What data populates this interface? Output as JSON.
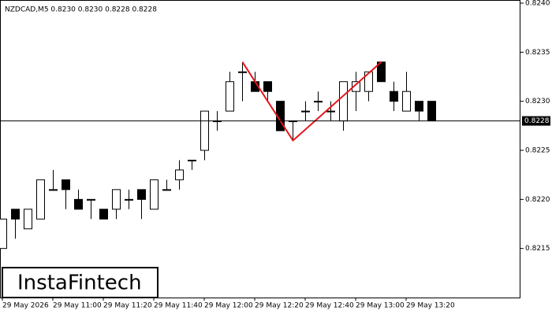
{
  "chart_data": {
    "type": "candlestick",
    "title": "NZDCAD,M5  0.8230 0.8230 0.8228 0.8228",
    "brand": "InstaFintech",
    "x": [
      "29 May 10:40",
      "29 May 10:45",
      "29 May 10:50",
      "29 May 10:55",
      "29 May 11:00",
      "29 May 11:05",
      "29 May 11:10",
      "29 May 11:15",
      "29 May 11:20",
      "29 May 11:25",
      "29 May 11:30",
      "29 May 11:35",
      "29 May 11:40",
      "29 May 11:45",
      "29 May 11:50",
      "29 May 11:55",
      "29 May 12:00",
      "29 May 12:05",
      "29 May 12:10",
      "29 May 12:15",
      "29 May 12:20",
      "29 May 12:25",
      "29 May 12:30",
      "29 May 12:35",
      "29 May 12:40",
      "29 May 12:45",
      "29 May 12:50",
      "29 May 12:55",
      "29 May 13:00",
      "29 May 13:05",
      "29 May 13:10",
      "29 May 13:15",
      "29 May 13:20",
      "29 May 13:25",
      "29 May 13:30"
    ],
    "open": [
      0.8215,
      0.8219,
      0.8217,
      0.8218,
      0.8221,
      0.8222,
      0.822,
      0.822,
      0.8219,
      0.8219,
      0.822,
      0.8221,
      0.8219,
      0.8221,
      0.8222,
      0.8224,
      0.8225,
      0.8228,
      0.8229,
      0.8233,
      0.8232,
      0.8232,
      0.823,
      0.8228,
      0.8229,
      0.823,
      0.8229,
      0.8228,
      0.8231,
      0.8231,
      0.8234,
      0.8231,
      0.8229,
      0.823,
      0.823
    ],
    "high": [
      0.8218,
      0.8219,
      0.8219,
      0.8222,
      0.8223,
      0.8222,
      0.8221,
      0.822,
      0.8219,
      0.8221,
      0.8221,
      0.8221,
      0.8222,
      0.8222,
      0.8224,
      0.8224,
      0.8229,
      0.8229,
      0.8233,
      0.8234,
      0.8233,
      0.8232,
      0.823,
      0.8228,
      0.823,
      0.8231,
      0.823,
      0.8232,
      0.8233,
      0.8233,
      0.8234,
      0.8232,
      0.8233,
      0.823,
      0.823
    ],
    "low": [
      0.8215,
      0.8216,
      0.8217,
      0.8218,
      0.8221,
      0.8219,
      0.8219,
      0.8218,
      0.8218,
      0.8218,
      0.8219,
      0.8218,
      0.8219,
      0.8221,
      0.8221,
      0.8223,
      0.8224,
      0.8227,
      0.8229,
      0.823,
      0.8231,
      0.823,
      0.8227,
      0.8226,
      0.8228,
      0.8229,
      0.8228,
      0.8227,
      0.8229,
      0.823,
      0.8232,
      0.8229,
      0.8229,
      0.8228,
      0.8228
    ],
    "close": [
      0.8218,
      0.8218,
      0.8219,
      0.8222,
      0.8221,
      0.8221,
      0.8219,
      0.822,
      0.8218,
      0.8221,
      0.822,
      0.822,
      0.8222,
      0.8221,
      0.8223,
      0.8224,
      0.8229,
      0.8228,
      0.8232,
      0.8233,
      0.8231,
      0.8231,
      0.8227,
      0.8228,
      0.8229,
      0.823,
      0.8229,
      0.8232,
      0.8232,
      0.8233,
      0.8232,
      0.823,
      0.8231,
      0.8229,
      0.8228
    ],
    "up_color": "#ffffff",
    "down_color": "#000000",
    "ylim": [
      0.821,
      0.824
    ],
    "yticks": [
      {
        "value": 0.8215,
        "label": "0.8215"
      },
      {
        "value": 0.822,
        "label": "0.8220"
      },
      {
        "value": 0.8225,
        "label": "0.8225"
      },
      {
        "value": 0.823,
        "label": "0.8230"
      },
      {
        "value": 0.8235,
        "label": "0.8235"
      },
      {
        "value": 0.824,
        "label": "0.8240"
      }
    ],
    "xticks": [
      {
        "value": "29 May 10:40",
        "label": "29 May 2026"
      },
      "29 May 11:00",
      "29 May 11:20",
      "29 May 11:40",
      "29 May 12:00",
      "29 May 12:20",
      "29 May 12:40",
      "29 May 13:00",
      "29 May 13:20"
    ],
    "last_price": {
      "value": 0.8228,
      "label": "0.8228"
    },
    "pattern": {
      "color": "#e8141b",
      "x": [
        "29 May 12:15",
        "29 May 12:35",
        "29 May 13:10"
      ],
      "values": [
        0.8234,
        0.8226,
        0.8234
      ]
    }
  }
}
